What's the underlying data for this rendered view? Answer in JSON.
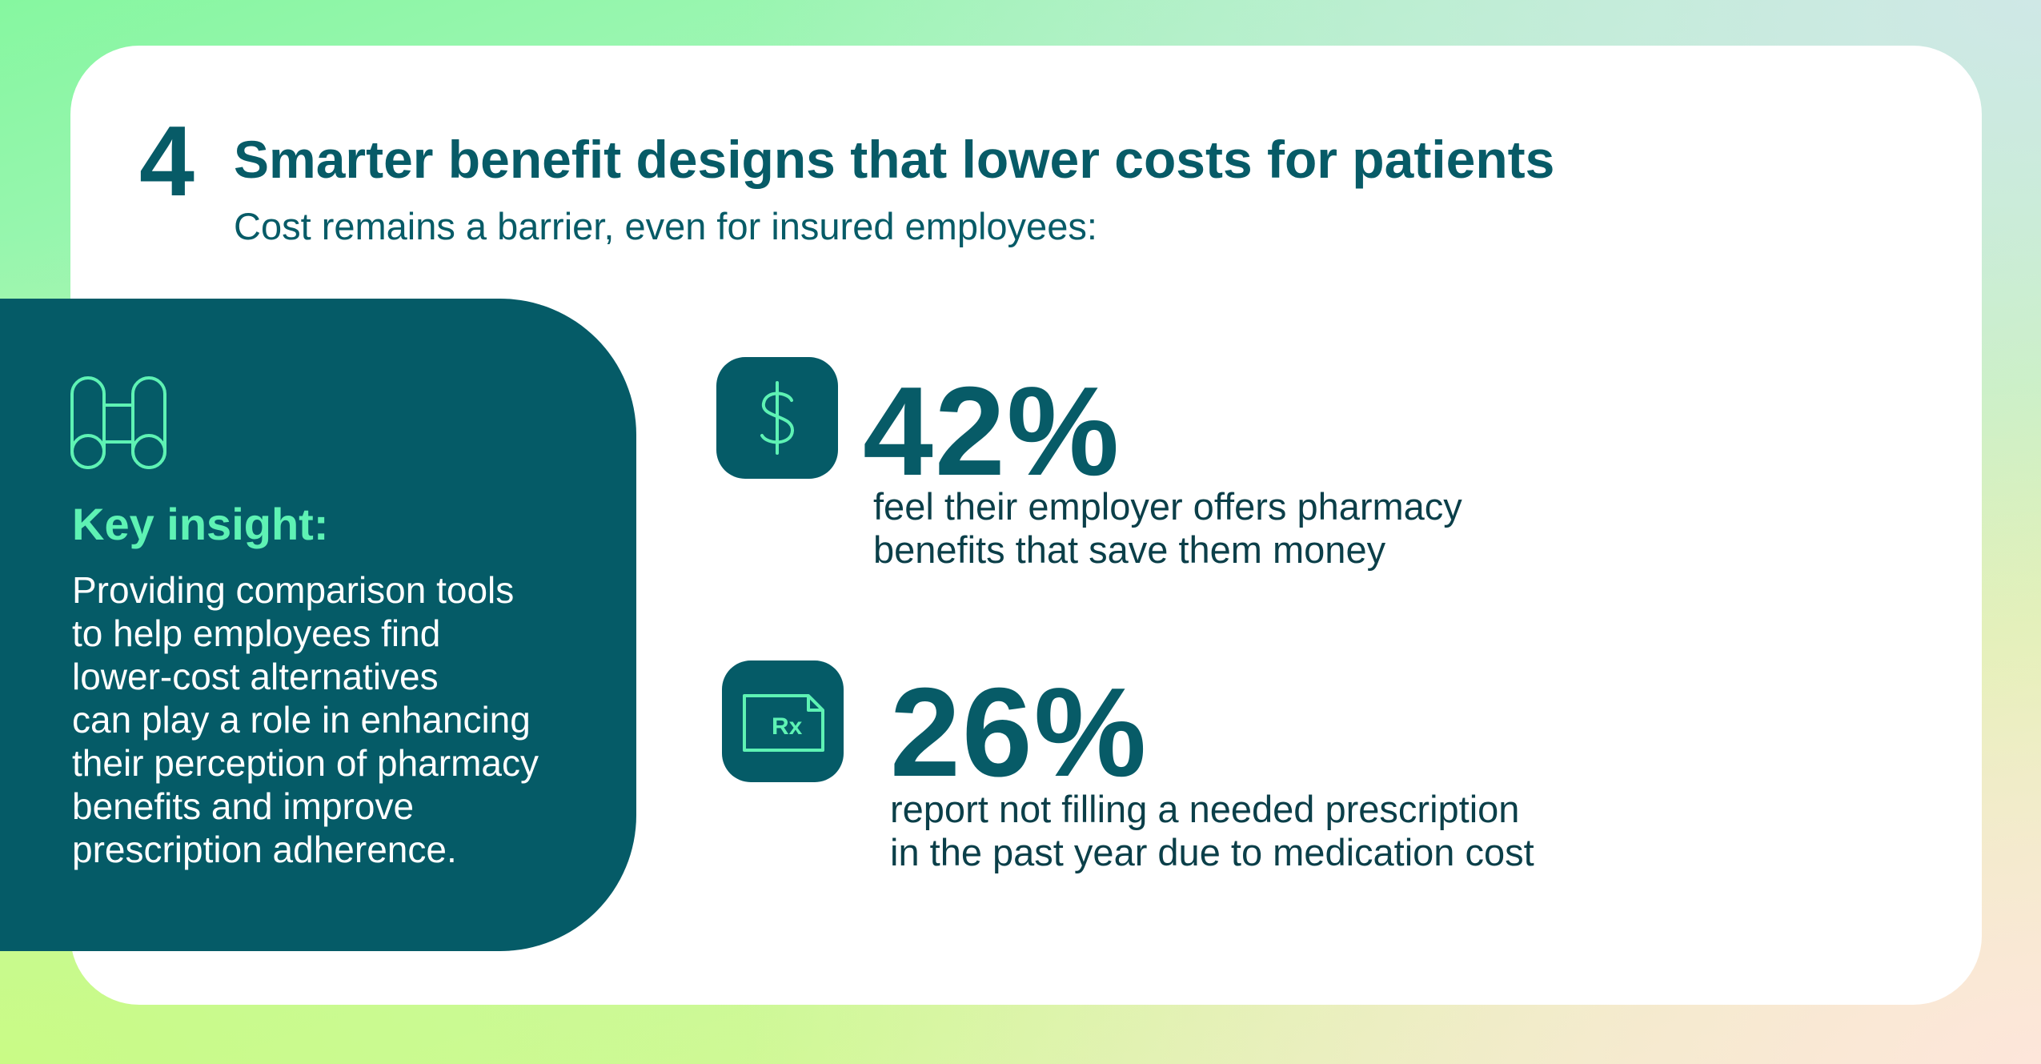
{
  "section": {
    "number": "4",
    "title": "Smarter benefit designs that lower costs for patients",
    "subtitle": "Cost remains a barrier, even for insured employees:"
  },
  "insight": {
    "icon": "binoculars-icon",
    "heading": "Key insight:",
    "body_lines": [
      "Providing comparison tools",
      "to help employees find",
      "lower-cost alternatives",
      "can play a role in enhancing",
      "their perception of pharmacy",
      "benefits and improve",
      "prescription adherence."
    ]
  },
  "stats": [
    {
      "icon": "dollar-icon",
      "value": "42%",
      "desc_lines": [
        "feel their employer offers pharmacy",
        "benefits that save them money"
      ]
    },
    {
      "icon": "prescription-icon",
      "icon_text": "Rx",
      "value": "26%",
      "desc_lines": [
        "report not filling a needed prescription",
        "in the past year due to medication cost"
      ]
    }
  ],
  "colors": {
    "primary": "#075b67",
    "accent": "#5ef2b4",
    "card": "#ffffff"
  }
}
